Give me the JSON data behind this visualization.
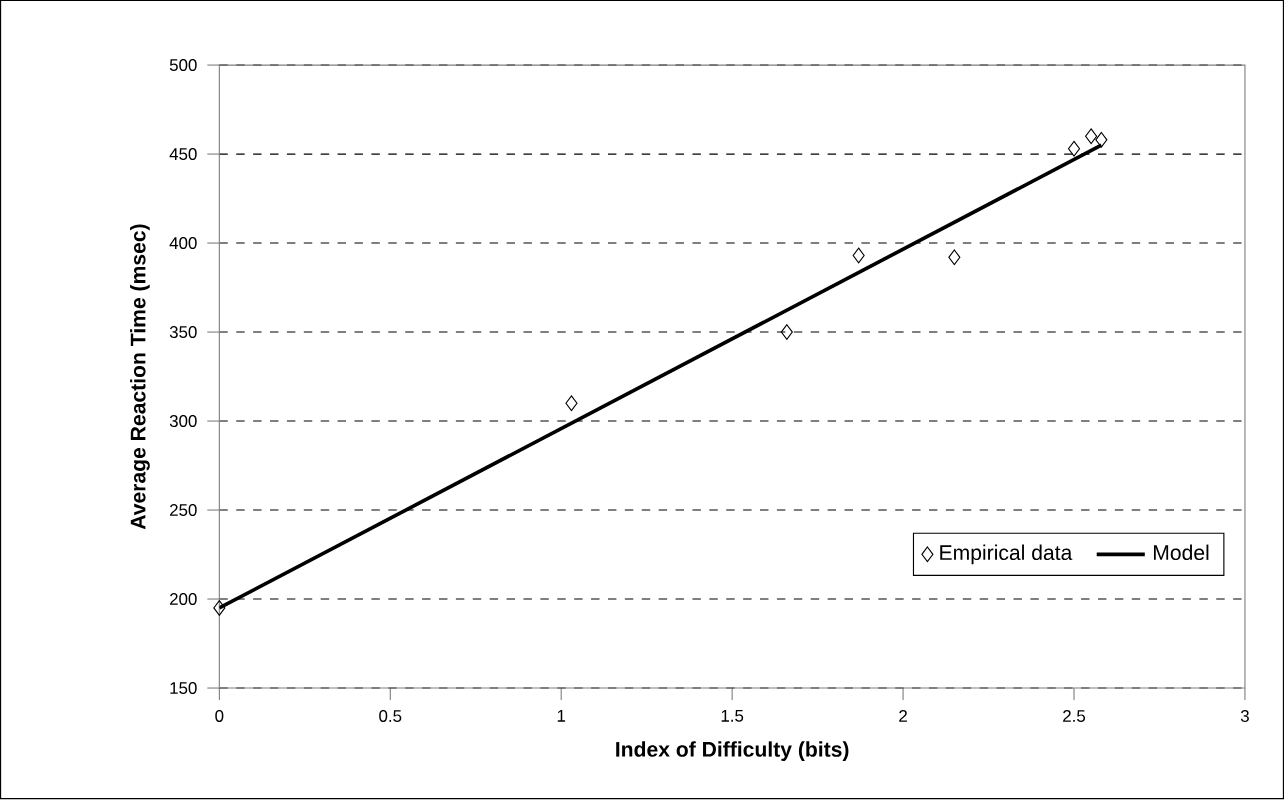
{
  "chart_data": {
    "type": "scatter",
    "xlabel": "Index of Difficulty (bits)",
    "ylabel": "Average Reaction Time (msec)",
    "xlim": [
      0,
      3
    ],
    "ylim": [
      150,
      500
    ],
    "xticks": [
      0,
      0.5,
      1,
      1.5,
      2,
      2.5,
      3
    ],
    "yticks": [
      150,
      200,
      250,
      300,
      350,
      400,
      450,
      500
    ],
    "grid": "y",
    "legend": "bottom right",
    "series": [
      {
        "name": "Empirical data",
        "marker": "diamond",
        "color": "#000000",
        "x": [
          0,
          1.03,
          1.66,
          1.87,
          2.15,
          2.5,
          2.55,
          2.58
        ],
        "values": [
          195,
          310,
          350,
          393,
          392,
          453,
          460,
          458
        ]
      },
      {
        "name": "Model",
        "type": "line",
        "marker": "none",
        "line_style": "solid",
        "color": "#000000",
        "x": [
          0,
          2.58
        ],
        "values": [
          195,
          455
        ]
      }
    ]
  }
}
